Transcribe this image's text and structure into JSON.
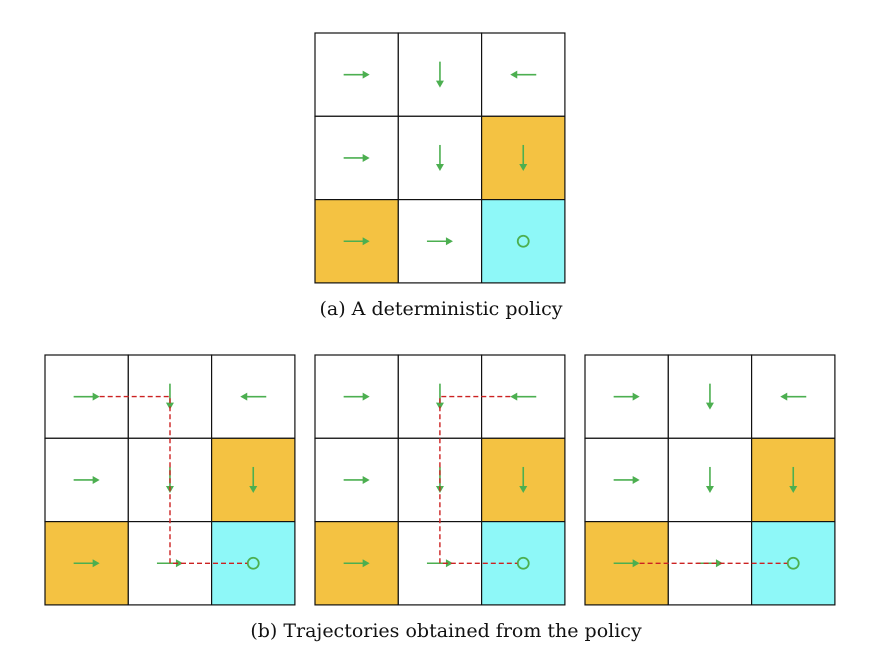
{
  "colors": {
    "arrow": "#4caf50",
    "forbidden": "#f4c242",
    "target": "#8ef8f8",
    "trajectory": "#cc2222",
    "grid_line": "#111111",
    "cell": "#ffffff"
  },
  "policy_grid": {
    "rows": 3,
    "cols": 3,
    "cell_types": [
      [
        "normal",
        "normal",
        "normal"
      ],
      [
        "normal",
        "normal",
        "forbidden"
      ],
      [
        "forbidden",
        "normal",
        "target"
      ]
    ],
    "actions": [
      [
        "right",
        "down",
        "left"
      ],
      [
        "right",
        "down",
        "down"
      ],
      [
        "right",
        "right",
        "stay"
      ]
    ]
  },
  "trajectories": [
    {
      "path": [
        [
          0,
          0
        ],
        [
          0,
          1
        ],
        [
          1,
          1
        ],
        [
          2,
          1
        ],
        [
          2,
          2
        ]
      ]
    },
    {
      "path": [
        [
          0,
          2
        ],
        [
          0,
          1
        ],
        [
          1,
          1
        ],
        [
          2,
          1
        ],
        [
          2,
          2
        ]
      ]
    },
    {
      "path": [
        [
          2,
          0
        ],
        [
          2,
          1
        ],
        [
          2,
          2
        ]
      ]
    }
  ],
  "captions": {
    "a": "(a) A deterministic policy",
    "b": "(b) Trajectories obtained from the policy"
  }
}
